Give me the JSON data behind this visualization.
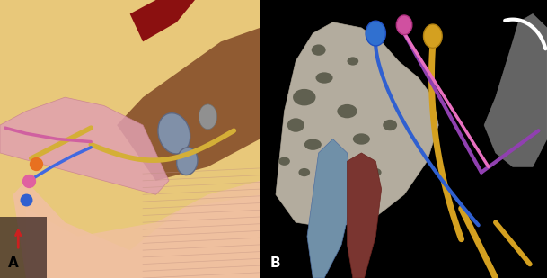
{
  "figsize": [
    6.09,
    3.09
  ],
  "dpi": 100,
  "panel_A": {
    "label": "A",
    "label_color": "black",
    "label_fontsize": 11,
    "label_fontweight": "bold"
  },
  "panel_B": {
    "label": "B",
    "label_color": "white",
    "label_fontsize": 11,
    "label_fontweight": "bold"
  },
  "panel_A_elements": {
    "skull_bone_color": "#E8C87A",
    "dark_brown": "#7A4020",
    "blood_red": "#8B1010",
    "brain_pink": "#F0C0A0",
    "nerve_yellow": "#D4AF37",
    "nerve_blue": "#4169E1",
    "nerve_pink": "#D060A0",
    "ganglion_gray": "#8090A8",
    "dot_orange": "#E87020",
    "dot_pink": "#E060A0",
    "dot_blue": "#3060D0",
    "red_arrow": "#CC2020",
    "dark_region": "#2A1A1A",
    "pink_tube": "#E0A0B0",
    "stripe_color": "#C09080"
  },
  "panel_B_elements": {
    "bg_black": "#111111",
    "bone_color": "#C8C0B0",
    "bone_edge": "#B0A898",
    "hole_color": "#606050",
    "struct_blue": "#7090A8",
    "struct_red": "#7A3530",
    "nerve_yellow": "#D4A020",
    "nerve_blue": "#3060D0",
    "nerve_purple": "#9040B0",
    "nerve_pink": "#E870C0",
    "bulb_blue": "#3070D0",
    "bulb_pink": "#D050A0",
    "bulb_yellow": "#D4A020",
    "ear_gray": "#909090",
    "white": "#FFFFFF"
  }
}
